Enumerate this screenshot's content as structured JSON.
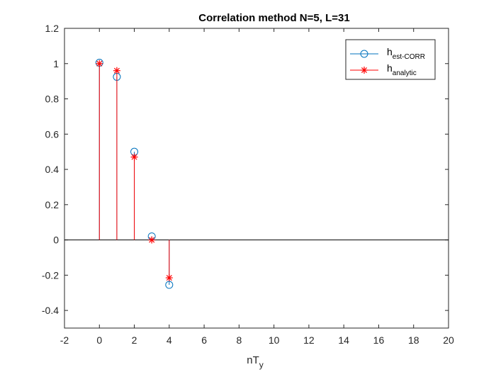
{
  "chart_data": {
    "type": "stem",
    "title": "Correlation method N=5, L=31",
    "xlabel_main": "nT",
    "xlabel_sub": "y",
    "ylabel": "",
    "xlim": [
      -2,
      20
    ],
    "ylim": [
      -0.5,
      1.2
    ],
    "xticks": [
      -2,
      0,
      2,
      4,
      6,
      8,
      10,
      12,
      14,
      16,
      18,
      20
    ],
    "yticks": [
      -0.4,
      -0.2,
      0,
      0.2,
      0.4,
      0.6,
      0.8,
      1,
      1.2
    ],
    "xtick_labels": [
      "-2",
      "0",
      "2",
      "4",
      "6",
      "8",
      "10",
      "12",
      "14",
      "16",
      "18",
      "20"
    ],
    "ytick_labels": [
      "-0.4",
      "-0.2",
      "0",
      "0.2",
      "0.4",
      "0.6",
      "0.8",
      "1",
      "1.2"
    ],
    "grid": false,
    "legend_position": "top-right",
    "baseline": 0,
    "series": [
      {
        "name_main": "h",
        "name_sub": "est-CORR",
        "marker": "circle",
        "color": "#0072BD",
        "x": [
          0,
          1,
          2,
          3,
          4
        ],
        "y": [
          1.005,
          0.925,
          0.5,
          0.02,
          -0.255
        ]
      },
      {
        "name_main": "h",
        "name_sub": "analytic",
        "marker": "asterisk",
        "color": "#FF0000",
        "x": [
          0,
          1,
          2,
          3,
          4
        ],
        "y": [
          1.0,
          0.96,
          0.47,
          0.0,
          -0.215
        ]
      }
    ]
  }
}
